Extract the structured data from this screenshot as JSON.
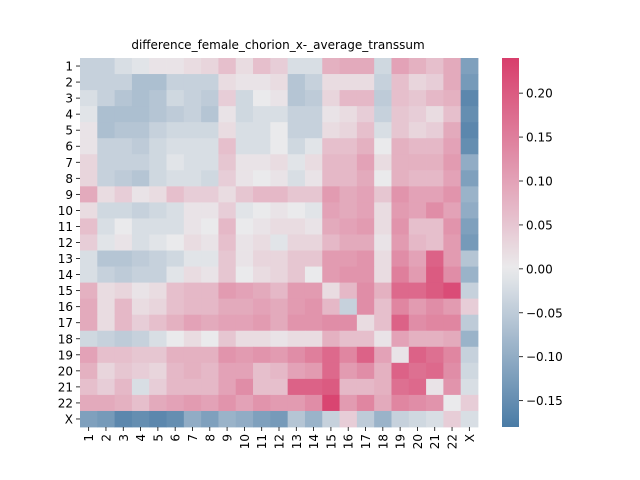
{
  "chart_data": {
    "type": "heatmap",
    "title": "difference_female_chorion_x-_average_transsum",
    "labels": [
      "1",
      "2",
      "3",
      "4",
      "5",
      "6",
      "7",
      "8",
      "9",
      "10",
      "11",
      "12",
      "13",
      "14",
      "15",
      "16",
      "17",
      "18",
      "19",
      "20",
      "21",
      "22",
      "X"
    ],
    "colorbar": {
      "min": -0.18,
      "max": 0.24,
      "ticks": [
        "0.20",
        "0.15",
        "0.10",
        "0.05",
        "0.00",
        "−0.05",
        "−0.10",
        "−0.15"
      ],
      "tick_values": [
        0.2,
        0.15,
        0.1,
        0.05,
        0.0,
        -0.05,
        -0.1,
        -0.15
      ]
    },
    "colors": {
      "negative": "#4a7ba5",
      "neutral": "#eaeaec",
      "positive": "#d83e6c"
    },
    "matrix": [
      [
        -0.04,
        -0.04,
        -0.02,
        -0.01,
        0.01,
        0.01,
        0.02,
        0.03,
        0.06,
        0.02,
        0.06,
        0.04,
        -0.02,
        -0.02,
        0.08,
        0.09,
        0.09,
        -0.03,
        0.1,
        0.08,
        0.06,
        0.09,
        -0.12
      ],
      [
        -0.04,
        -0.04,
        -0.04,
        -0.07,
        -0.07,
        -0.04,
        -0.04,
        -0.04,
        0.02,
        0.01,
        0.01,
        0.02,
        -0.06,
        -0.04,
        0.02,
        0.02,
        0.02,
        -0.04,
        0.06,
        0.03,
        0.04,
        0.09,
        -0.13
      ],
      [
        -0.02,
        -0.04,
        -0.06,
        -0.07,
        -0.06,
        -0.03,
        -0.04,
        -0.05,
        0.04,
        -0.03,
        0.0,
        0.01,
        -0.06,
        -0.05,
        0.03,
        0.07,
        0.07,
        -0.05,
        0.06,
        0.05,
        0.07,
        0.08,
        -0.16
      ],
      [
        -0.01,
        -0.07,
        -0.07,
        -0.07,
        -0.06,
        -0.05,
        -0.04,
        -0.06,
        0.01,
        -0.03,
        -0.02,
        -0.02,
        -0.04,
        -0.04,
        0.01,
        0.02,
        0.04,
        -0.04,
        0.05,
        0.04,
        0.02,
        0.06,
        -0.15
      ],
      [
        0.01,
        -0.07,
        -0.06,
        -0.06,
        -0.04,
        -0.03,
        -0.03,
        -0.03,
        0.02,
        -0.02,
        -0.02,
        0.0,
        -0.04,
        -0.04,
        0.02,
        0.03,
        0.06,
        -0.02,
        0.05,
        0.03,
        0.04,
        0.09,
        -0.16
      ],
      [
        0.01,
        -0.04,
        -0.04,
        -0.05,
        -0.03,
        -0.02,
        -0.02,
        -0.02,
        0.06,
        -0.02,
        -0.02,
        0.0,
        -0.03,
        -0.01,
        0.06,
        0.06,
        0.08,
        0.0,
        0.08,
        0.07,
        0.07,
        0.1,
        -0.15
      ],
      [
        0.03,
        -0.04,
        -0.04,
        -0.04,
        -0.03,
        -0.01,
        -0.02,
        -0.02,
        0.05,
        0.01,
        0.01,
        0.02,
        -0.01,
        0.02,
        0.07,
        0.07,
        0.1,
        0.02,
        0.08,
        0.08,
        0.08,
        0.11,
        -0.1
      ],
      [
        0.03,
        -0.04,
        -0.05,
        -0.06,
        -0.03,
        -0.02,
        -0.02,
        -0.03,
        0.04,
        0.01,
        0.0,
        0.01,
        -0.02,
        0.01,
        0.07,
        0.07,
        0.09,
        0.0,
        0.08,
        0.07,
        0.07,
        0.1,
        -0.12
      ],
      [
        0.09,
        0.02,
        0.04,
        0.01,
        0.02,
        0.06,
        0.04,
        0.04,
        0.02,
        0.05,
        0.07,
        0.07,
        0.05,
        0.05,
        0.11,
        0.09,
        0.1,
        0.05,
        0.12,
        0.1,
        0.1,
        0.12,
        -0.09
      ],
      [
        0.02,
        -0.03,
        -0.03,
        -0.04,
        -0.03,
        -0.02,
        0.01,
        0.01,
        0.04,
        -0.01,
        0.0,
        0.01,
        0.0,
        -0.01,
        0.1,
        0.09,
        0.1,
        0.02,
        0.11,
        0.1,
        0.13,
        0.1,
        -0.1
      ],
      [
        0.06,
        -0.02,
        0.0,
        -0.02,
        -0.02,
        -0.02,
        0.01,
        0.0,
        0.07,
        0.0,
        0.01,
        0.02,
        0.02,
        0.01,
        0.09,
        0.1,
        0.11,
        0.02,
        0.12,
        0.06,
        0.06,
        0.12,
        -0.12
      ],
      [
        0.04,
        -0.01,
        0.01,
        -0.02,
        -0.01,
        0.0,
        0.02,
        0.01,
        0.06,
        0.01,
        0.02,
        -0.01,
        0.03,
        0.03,
        0.07,
        0.09,
        0.09,
        0.01,
        0.11,
        0.07,
        0.06,
        0.11,
        -0.13
      ],
      [
        -0.02,
        -0.06,
        -0.06,
        -0.05,
        -0.04,
        -0.03,
        -0.01,
        -0.01,
        0.05,
        0.01,
        0.03,
        0.03,
        0.05,
        0.05,
        0.11,
        0.11,
        0.12,
        0.02,
        0.13,
        0.1,
        0.19,
        0.11,
        -0.06
      ],
      [
        -0.02,
        -0.04,
        -0.05,
        -0.04,
        -0.04,
        -0.01,
        0.02,
        0.01,
        0.05,
        0.0,
        0.02,
        0.03,
        0.05,
        0.0,
        0.11,
        0.12,
        0.12,
        0.02,
        0.15,
        0.11,
        0.2,
        0.13,
        -0.09
      ],
      [
        0.08,
        0.02,
        0.03,
        0.01,
        0.02,
        0.06,
        0.07,
        0.07,
        0.11,
        0.1,
        0.09,
        0.07,
        0.11,
        0.11,
        0.02,
        0.07,
        0.13,
        0.08,
        0.18,
        0.18,
        0.2,
        0.22,
        -0.04
      ],
      [
        0.09,
        0.02,
        0.07,
        0.02,
        0.03,
        0.06,
        0.07,
        0.07,
        0.09,
        0.09,
        0.1,
        0.09,
        0.11,
        0.12,
        0.07,
        -0.04,
        0.13,
        0.06,
        0.14,
        0.11,
        0.13,
        0.11,
        0.04
      ],
      [
        0.09,
        0.02,
        0.07,
        0.04,
        0.06,
        0.08,
        0.1,
        0.09,
        0.1,
        0.1,
        0.11,
        0.09,
        0.12,
        0.12,
        0.13,
        0.13,
        0.02,
        0.06,
        0.19,
        0.13,
        0.14,
        0.14,
        -0.05
      ],
      [
        -0.03,
        -0.04,
        -0.05,
        -0.04,
        -0.02,
        0.0,
        0.02,
        0.0,
        0.05,
        0.02,
        0.02,
        0.01,
        0.02,
        0.02,
        0.08,
        0.06,
        0.06,
        0.01,
        0.1,
        0.08,
        0.08,
        0.09,
        -0.09
      ],
      [
        0.1,
        0.06,
        0.06,
        0.05,
        0.05,
        0.08,
        0.08,
        0.08,
        0.12,
        0.11,
        0.12,
        0.11,
        0.13,
        0.15,
        0.18,
        0.14,
        0.19,
        0.1,
        0.01,
        0.19,
        0.17,
        0.14,
        -0.04
      ],
      [
        0.08,
        0.03,
        0.05,
        0.04,
        0.03,
        0.07,
        0.08,
        0.07,
        0.1,
        0.1,
        0.06,
        0.07,
        0.1,
        0.11,
        0.18,
        0.11,
        0.13,
        0.08,
        0.19,
        0.17,
        0.18,
        0.13,
        -0.03
      ],
      [
        0.06,
        0.04,
        0.07,
        -0.02,
        0.04,
        0.07,
        0.07,
        0.07,
        0.1,
        0.13,
        0.06,
        0.06,
        0.19,
        0.19,
        0.2,
        0.07,
        0.07,
        0.08,
        0.17,
        0.18,
        0.01,
        0.12,
        -0.02
      ],
      [
        0.09,
        0.09,
        0.08,
        0.06,
        0.09,
        0.1,
        0.11,
        0.1,
        0.12,
        0.1,
        0.12,
        0.11,
        0.11,
        0.13,
        0.23,
        0.11,
        0.14,
        0.09,
        0.14,
        0.13,
        0.12,
        0.0,
        0.04
      ],
      [
        -0.12,
        -0.13,
        -0.16,
        -0.15,
        -0.16,
        -0.15,
        -0.1,
        -0.12,
        -0.09,
        -0.1,
        -0.12,
        -0.13,
        -0.06,
        -0.09,
        -0.04,
        0.04,
        -0.05,
        -0.09,
        -0.04,
        -0.03,
        -0.02,
        0.04,
        -0.02
      ]
    ]
  }
}
